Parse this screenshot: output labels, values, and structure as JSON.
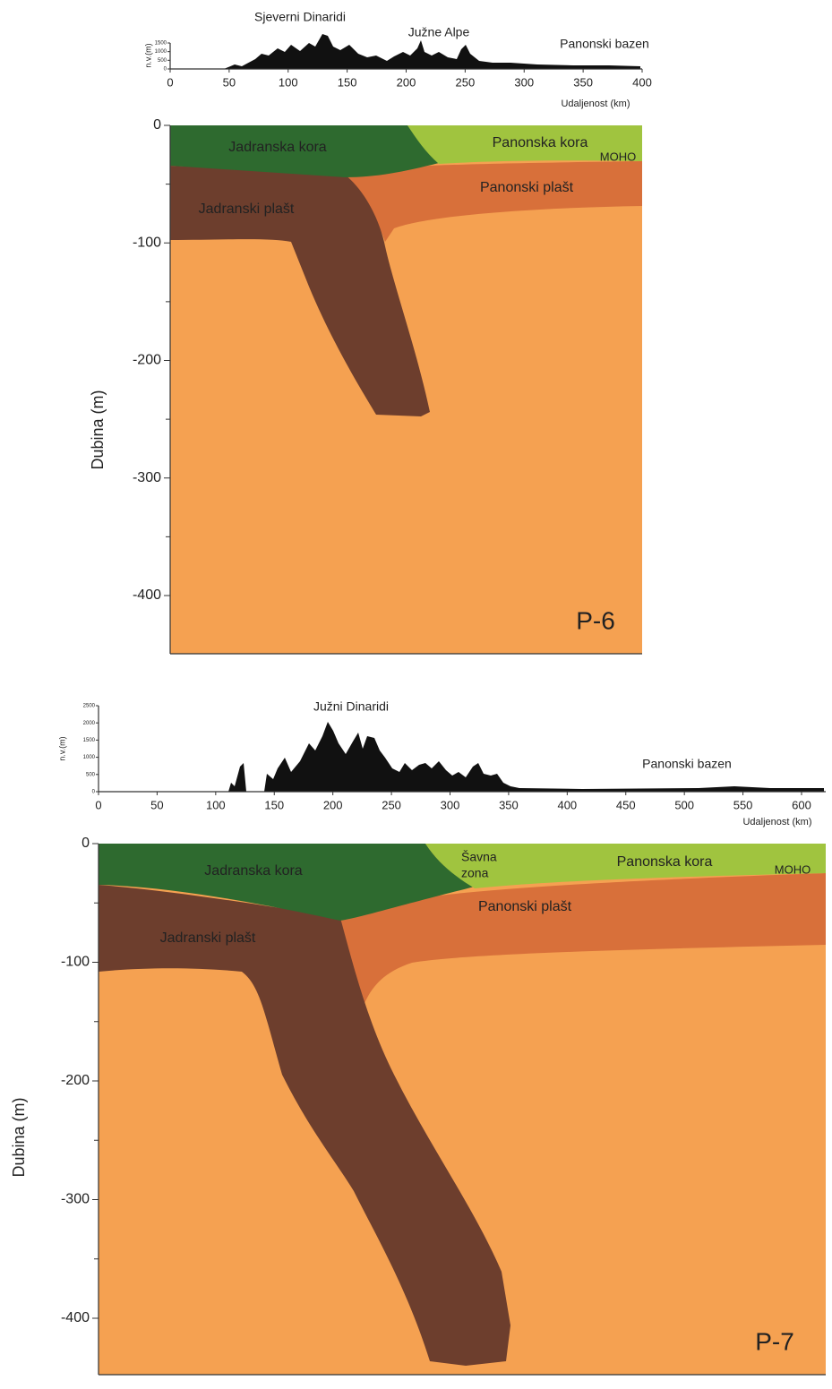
{
  "panels": [
    {
      "id_label": "P-6",
      "topo": {
        "labels": [
          "Sjeverni Dinaridi",
          "Južne Alpe",
          "Panonski bazen"
        ],
        "y_axis_label": "n.v.(m)",
        "y_ticks": [
          "1500",
          "1000",
          "500",
          "0"
        ],
        "x_ticks": [
          "0",
          "50",
          "100",
          "150",
          "200",
          "250",
          "300",
          "350",
          "400"
        ],
        "x_axis_label": "Udaljenost (km)"
      },
      "section": {
        "y_axis_label": "Dubina (m)",
        "y_ticks": [
          "0",
          "-100",
          "-200",
          "-300",
          "-400"
        ],
        "units": [
          "Jadranska kora",
          "Panonska kora",
          "MOHO",
          "Panonski plašt",
          "Jadranski plašt"
        ]
      }
    },
    {
      "id_label": "P-7",
      "topo": {
        "labels": [
          "Južni Dinaridi",
          "Panonski bazen"
        ],
        "y_axis_label": "n.v.(m)",
        "y_ticks": [
          "2500",
          "2000",
          "1500",
          "1000",
          "500",
          "0"
        ],
        "x_ticks": [
          "0",
          "50",
          "100",
          "150",
          "200",
          "250",
          "300",
          "350",
          "400",
          "450",
          "500",
          "550",
          "600"
        ],
        "x_axis_label": "Udaljenost (km)"
      },
      "section": {
        "y_axis_label": "Dubina (m)",
        "y_ticks": [
          "0",
          "-100",
          "-200",
          "-300",
          "-400"
        ],
        "units": [
          "Jadranska kora",
          "Šavna",
          "zona",
          "Panonska kora",
          "MOHO",
          "Panonski plašt",
          "Jadranski plašt"
        ]
      }
    }
  ]
}
